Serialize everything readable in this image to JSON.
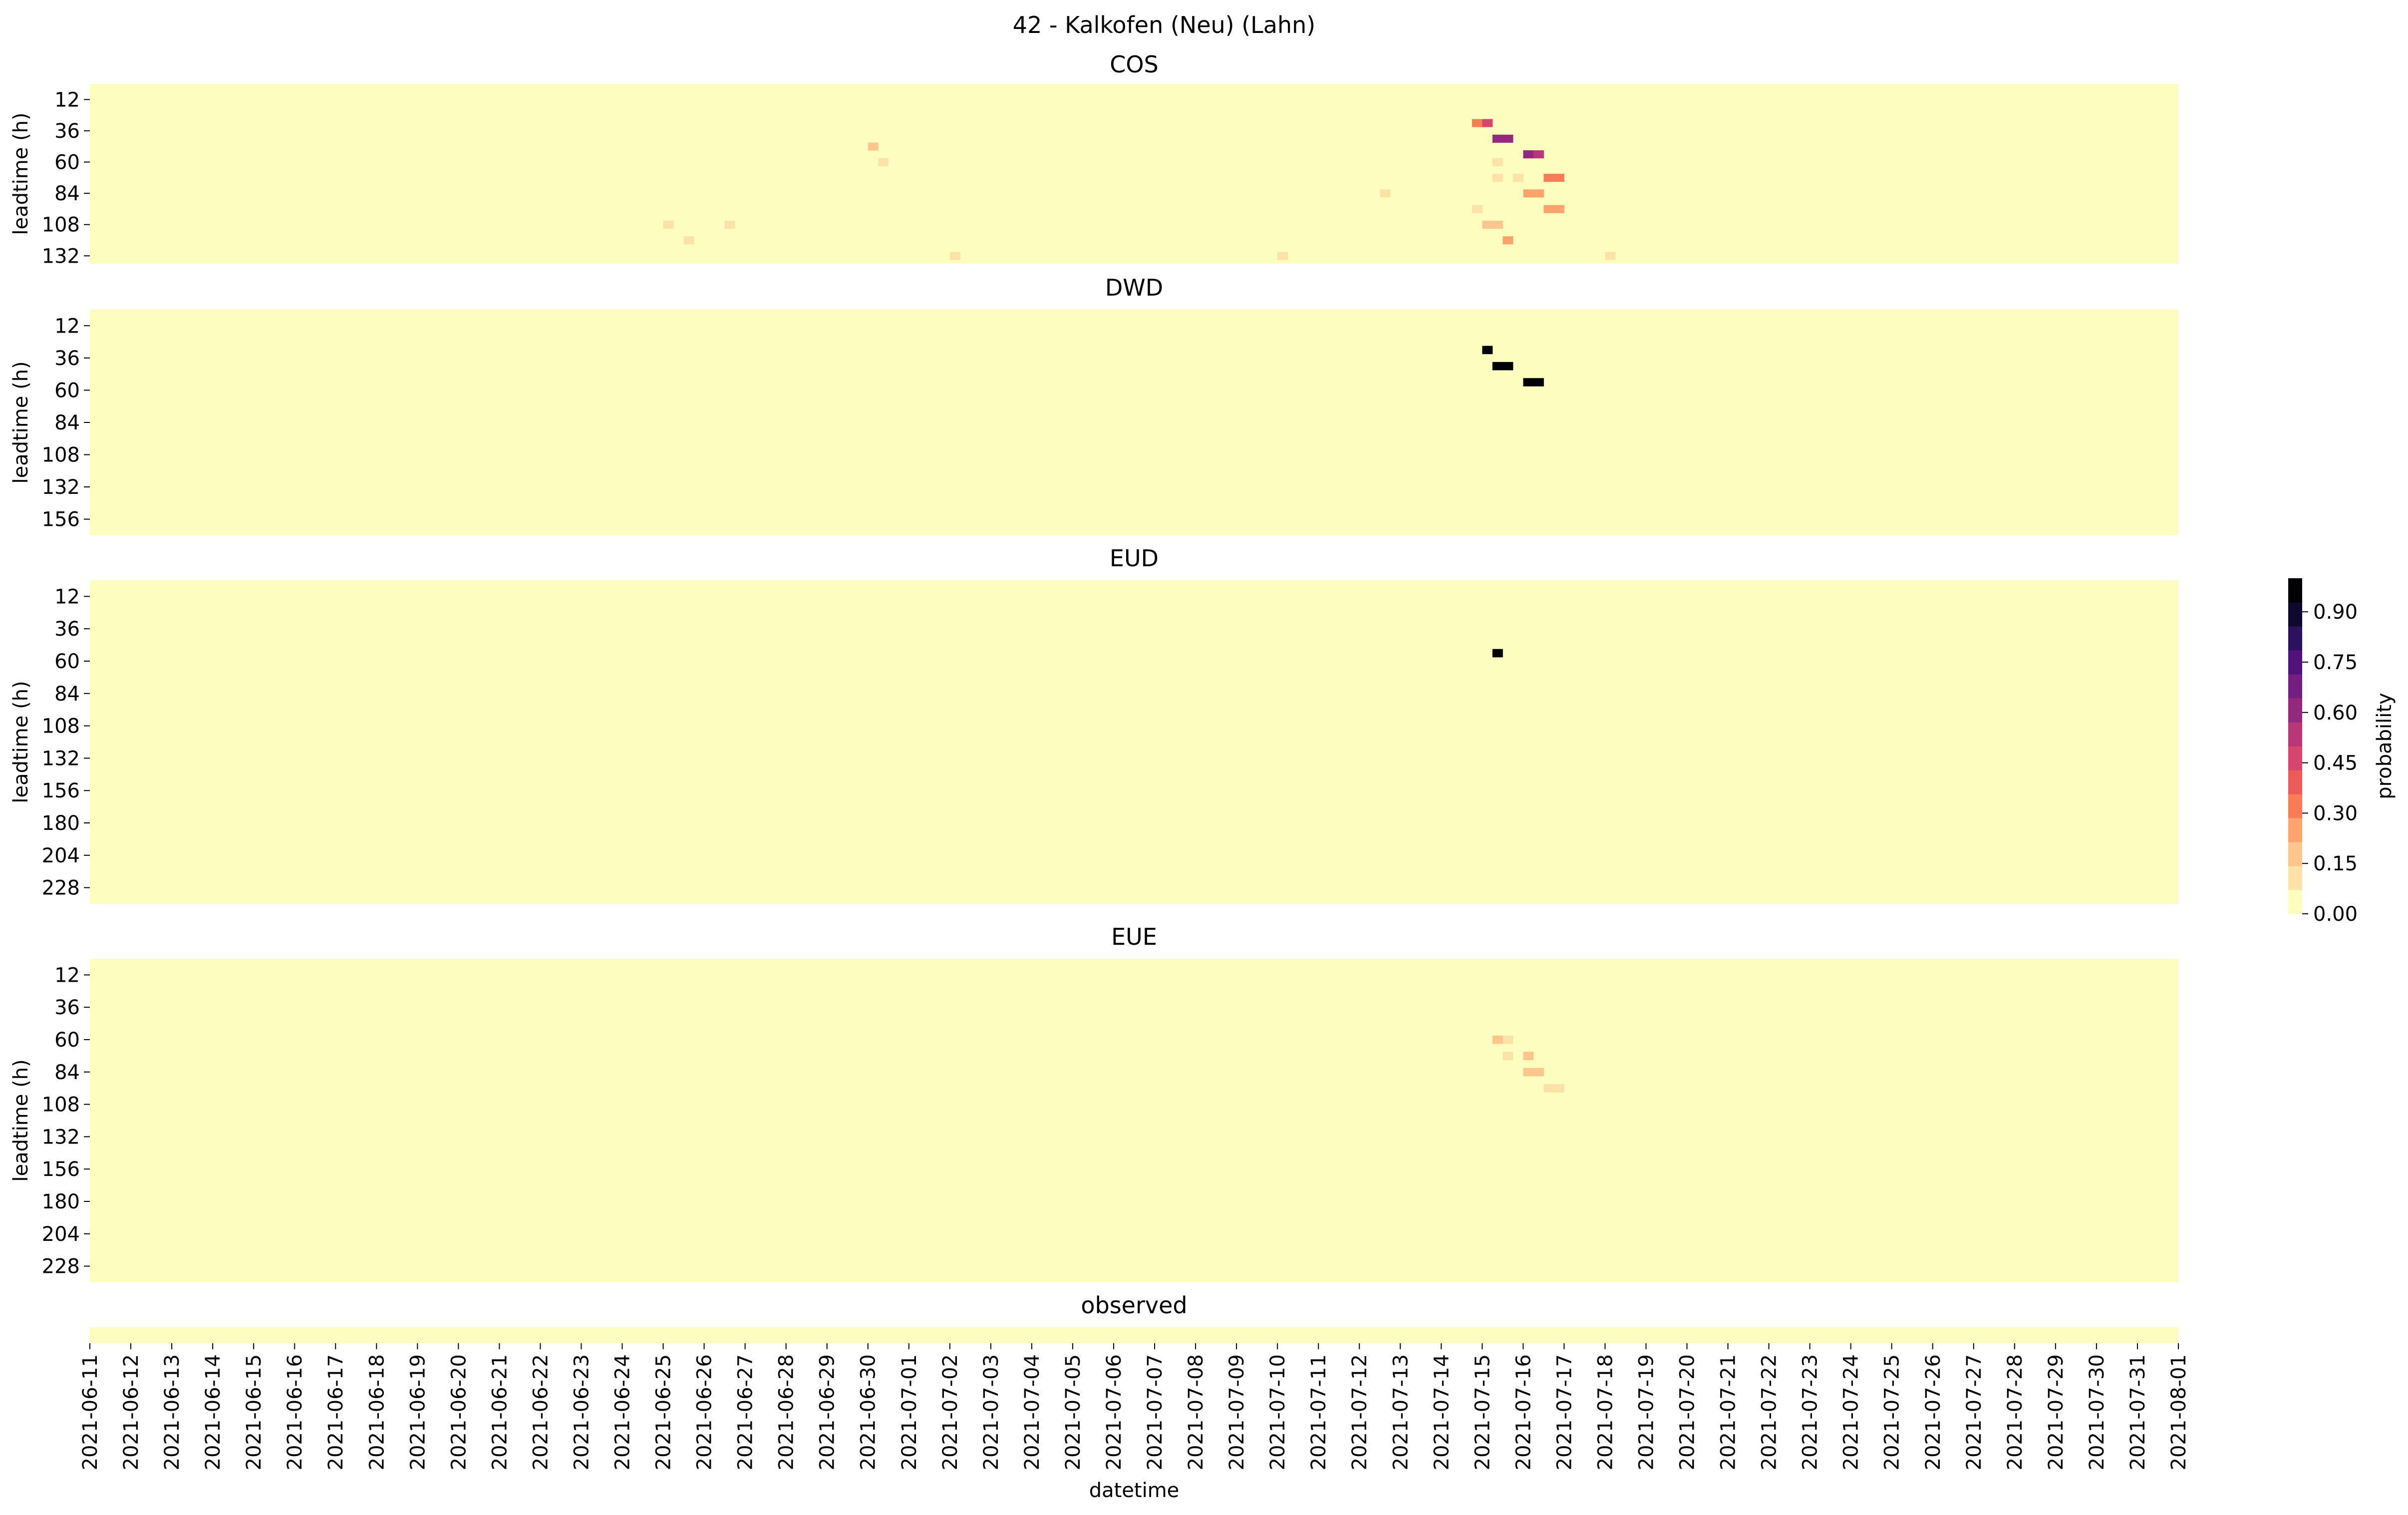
{
  "figure": {
    "title": "42 - Kalkofen (Neu) (Lahn)",
    "xlabel": "datetime",
    "colorbar": {
      "label": "probability",
      "ticks": [
        "0.00",
        "0.15",
        "0.30",
        "0.45",
        "0.60",
        "0.75",
        "0.90"
      ],
      "tick_values": [
        0.0,
        0.15,
        0.3,
        0.45,
        0.6,
        0.75,
        0.9
      ],
      "range": [
        0,
        1
      ],
      "colormap": "magma_r",
      "colors": [
        "#fcfdbf",
        "#fde2a8",
        "#fec68c",
        "#fca46b",
        "#f87d57",
        "#ed5a5a",
        "#d6456c",
        "#b73779",
        "#93287e",
        "#721f81",
        "#50127b",
        "#2c115f",
        "#0f092f",
        "#000004"
      ]
    }
  },
  "chart_data": [
    {
      "type": "heatmap",
      "title": "COS",
      "ylabel": "leadtime (h)",
      "yticks": [
        "12",
        "36",
        "60",
        "84",
        "108",
        "132"
      ],
      "xticks": [],
      "x_range": [
        "2021-06-11",
        "2021-08-01"
      ],
      "leadtime_range": [
        0,
        138
      ],
      "nonzero_cells": [
        [
          "2021-07-14 12:00",
          12,
          0.03
        ],
        [
          "2021-07-14 18:00",
          30,
          0.35
        ],
        [
          "2021-07-15 00:00",
          30,
          0.45
        ],
        [
          "2021-07-15 06:00",
          42,
          0.6
        ],
        [
          "2021-07-15 12:00",
          42,
          0.6
        ],
        [
          "2021-07-14 12:00",
          42,
          0.03
        ],
        [
          "2021-07-15 12:00",
          54,
          0.05
        ],
        [
          "2021-07-16 00:00",
          54,
          0.6
        ],
        [
          "2021-07-16 06:00",
          54,
          0.55
        ],
        [
          "2021-07-14 18:00",
          60,
          0.05
        ],
        [
          "2021-07-15 06:00",
          60,
          0.08
        ],
        [
          "2021-07-16 18:00",
          60,
          0.05
        ],
        [
          "2021-07-17 00:00",
          60,
          0.05
        ],
        [
          "2021-07-16 12:00",
          72,
          0.35
        ],
        [
          "2021-07-16 18:00",
          72,
          0.35
        ],
        [
          "2021-07-15 06:00",
          72,
          0.08
        ],
        [
          "2021-07-15 18:00",
          72,
          0.12
        ],
        [
          "2021-07-16 00:00",
          84,
          0.25
        ],
        [
          "2021-07-16 06:00",
          84,
          0.25
        ],
        [
          "2021-07-16 12:00",
          96,
          0.25
        ],
        [
          "2021-07-16 18:00",
          96,
          0.25
        ],
        [
          "2021-07-14 18:00",
          96,
          0.1
        ],
        [
          "2021-07-15 00:00",
          108,
          0.2
        ],
        [
          "2021-07-15 06:00",
          108,
          0.2
        ],
        [
          "2021-07-15 12:00",
          120,
          0.25
        ],
        [
          "2021-06-30 00:00",
          48,
          0.15
        ],
        [
          "2021-06-30 06:00",
          60,
          0.12
        ],
        [
          "2021-06-30 12:00",
          60,
          0.06
        ],
        [
          "2021-06-25 00:00",
          108,
          0.08
        ],
        [
          "2021-06-25 12:00",
          120,
          0.08
        ],
        [
          "2021-06-26 12:00",
          108,
          0.08
        ],
        [
          "2021-07-02 00:00",
          132,
          0.08
        ],
        [
          "2021-07-10 00:00",
          132,
          0.08
        ],
        [
          "2021-07-12 12:00",
          84,
          0.08
        ],
        [
          "2021-07-18 00:00",
          132,
          0.08
        ]
      ]
    },
    {
      "type": "heatmap",
      "title": "DWD",
      "ylabel": "leadtime (h)",
      "yticks": [
        "12",
        "36",
        "60",
        "84",
        "108",
        "132",
        "156"
      ],
      "xticks": [],
      "x_range": [
        "2021-06-11",
        "2021-08-01"
      ],
      "leadtime_range": [
        0,
        168
      ],
      "nonzero_cells": [
        [
          "2021-07-15 00:00",
          30,
          1.0
        ],
        [
          "2021-07-15 06:00",
          42,
          1.0
        ],
        [
          "2021-07-15 12:00",
          42,
          1.0
        ],
        [
          "2021-07-16 00:00",
          54,
          1.0
        ],
        [
          "2021-07-16 06:00",
          54,
          1.0
        ]
      ]
    },
    {
      "type": "heatmap",
      "title": "EUD",
      "ylabel": "leadtime (h)",
      "yticks": [
        "12",
        "36",
        "60",
        "84",
        "108",
        "132",
        "156",
        "180",
        "204",
        "228"
      ],
      "xticks": [],
      "x_range": [
        "2021-06-11",
        "2021-08-01"
      ],
      "leadtime_range": [
        0,
        240
      ],
      "nonzero_cells": [
        [
          "2021-07-15 06:00",
          54,
          1.0
        ]
      ]
    },
    {
      "type": "heatmap",
      "title": "EUE",
      "ylabel": "leadtime (h)",
      "yticks": [
        "12",
        "36",
        "60",
        "84",
        "108",
        "132",
        "156",
        "180",
        "204",
        "228"
      ],
      "xticks": [],
      "x_range": [
        "2021-06-11",
        "2021-08-01"
      ],
      "leadtime_range": [
        0,
        240
      ],
      "nonzero_cells": [
        [
          "2021-07-15 00:00",
          48,
          0.06
        ],
        [
          "2021-07-15 06:00",
          48,
          0.06
        ],
        [
          "2021-07-15 06:00",
          60,
          0.2
        ],
        [
          "2021-07-15 12:00",
          60,
          0.08
        ],
        [
          "2021-07-15 12:00",
          72,
          0.08
        ],
        [
          "2021-07-16 00:00",
          72,
          0.2
        ],
        [
          "2021-07-16 00:00",
          84,
          0.15
        ],
        [
          "2021-07-16 06:00",
          84,
          0.2
        ],
        [
          "2021-07-16 12:00",
          96,
          0.12
        ],
        [
          "2021-07-16 18:00",
          96,
          0.12
        ],
        [
          "2021-07-17 00:00",
          108,
          0.06
        ]
      ]
    },
    {
      "type": "heatmap",
      "title": "observed",
      "ylabel": "",
      "yticks": [],
      "x_range": [
        "2021-06-11",
        "2021-08-01"
      ],
      "nonzero_cells": [],
      "xticks": [
        "2021-06-11",
        "2021-06-12",
        "2021-06-13",
        "2021-06-14",
        "2021-06-15",
        "2021-06-16",
        "2021-06-17",
        "2021-06-18",
        "2021-06-19",
        "2021-06-20",
        "2021-06-21",
        "2021-06-22",
        "2021-06-23",
        "2021-06-24",
        "2021-06-25",
        "2021-06-26",
        "2021-06-27",
        "2021-06-28",
        "2021-06-29",
        "2021-06-30",
        "2021-07-01",
        "2021-07-02",
        "2021-07-03",
        "2021-07-04",
        "2021-07-05",
        "2021-07-06",
        "2021-07-07",
        "2021-07-08",
        "2021-07-09",
        "2021-07-10",
        "2021-07-11",
        "2021-07-12",
        "2021-07-13",
        "2021-07-14",
        "2021-07-15",
        "2021-07-16",
        "2021-07-17",
        "2021-07-18",
        "2021-07-19",
        "2021-07-20",
        "2021-07-21",
        "2021-07-22",
        "2021-07-23",
        "2021-07-24",
        "2021-07-25",
        "2021-07-26",
        "2021-07-27",
        "2021-07-28",
        "2021-07-29",
        "2021-07-30",
        "2021-07-31",
        "2021-08-01"
      ]
    }
  ]
}
